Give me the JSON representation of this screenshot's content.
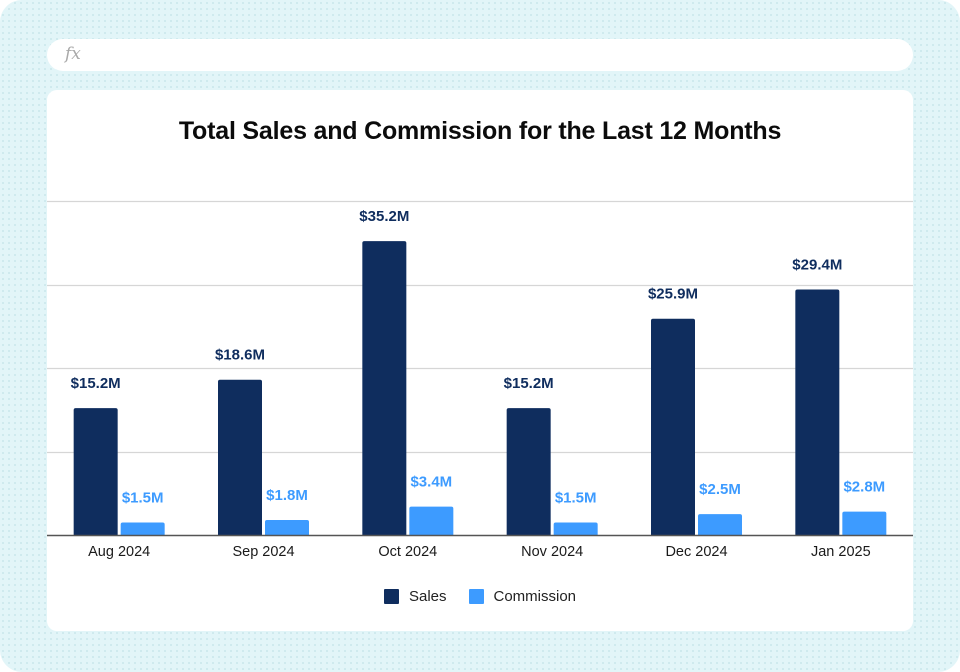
{
  "formula_bar": {
    "icon": "fx-icon",
    "icon_text": "fx",
    "value": ""
  },
  "colors": {
    "sales": "#0f2d5e",
    "commission": "#3d9bff",
    "gridline": "#d6d6d6",
    "axis": "#555555",
    "background": "#e2f5f8"
  },
  "chart_data": {
    "type": "bar",
    "title": "Total Sales and Commission for the Last 12 Months",
    "xlabel": "",
    "ylabel": "",
    "categories": [
      "Aug 2024",
      "Sep 2024",
      "Oct 2024",
      "Nov 2024",
      "Dec 2024",
      "Jan 2025"
    ],
    "series": [
      {
        "name": "Sales",
        "values": [
          15.2,
          18.6,
          35.2,
          15.2,
          25.9,
          29.4
        ],
        "labels": [
          "$15.2M",
          "$18.6M",
          "$35.2M",
          "$15.2M",
          "$25.9M",
          "$29.4M"
        ]
      },
      {
        "name": "Commission",
        "values": [
          1.5,
          1.8,
          3.4,
          1.5,
          2.5,
          2.8
        ],
        "labels": [
          "$1.5M",
          "$1.8M",
          "$3.4M",
          "$1.5M",
          "$2.5M",
          "$2.8M"
        ]
      }
    ],
    "units": "millions USD",
    "ylim": [
      0,
      40
    ],
    "yticks": [
      0,
      10,
      20,
      30,
      40
    ],
    "ytick_labels_visible": false,
    "grid": true,
    "legend": [
      "Sales",
      "Commission"
    ],
    "legend_position": "bottom-center"
  }
}
